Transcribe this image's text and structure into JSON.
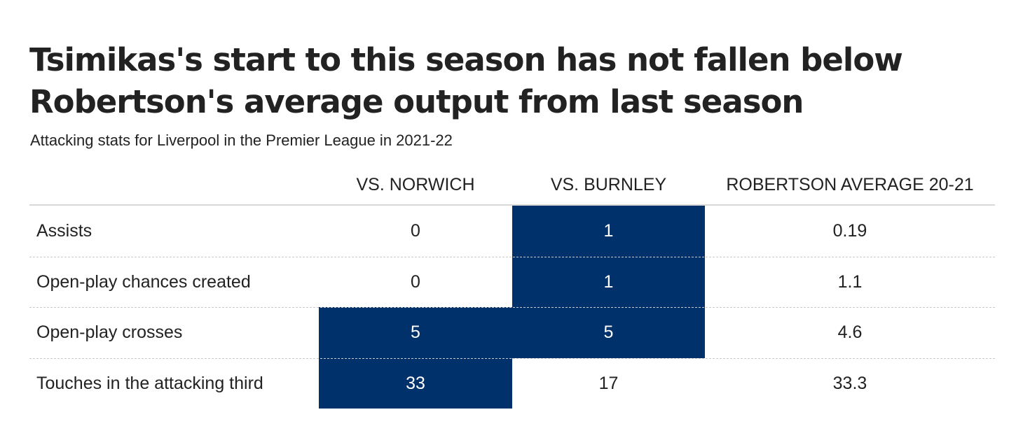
{
  "chart_data": {
    "type": "table",
    "title_lines": [
      "Tsimikas's start to this season has not fallen below",
      "Robertson's average output from last season"
    ],
    "subtitle": "Attacking stats for Liverpool in the Premier League in 2021-22",
    "columns": [
      "VS. NORWICH",
      "VS. BURNLEY",
      "ROBERTSON AVERAGE 20-21"
    ],
    "rows": [
      {
        "label": "Assists",
        "values": [
          "0",
          "1",
          "0.19"
        ],
        "highlight": [
          false,
          true,
          false
        ]
      },
      {
        "label": "Open-play chances created",
        "values": [
          "0",
          "1",
          "1.1"
        ],
        "highlight": [
          false,
          true,
          false
        ]
      },
      {
        "label": "Open-play crosses",
        "values": [
          "5",
          "5",
          "4.6"
        ],
        "highlight": [
          true,
          true,
          false
        ]
      },
      {
        "label": "Touches in the attacking third",
        "values": [
          "33",
          "17",
          "33.3"
        ],
        "highlight": [
          true,
          false,
          false
        ]
      }
    ],
    "highlight_color": "#00316b",
    "text_color": "#222222",
    "highlight_text_color": "#ffffff"
  }
}
